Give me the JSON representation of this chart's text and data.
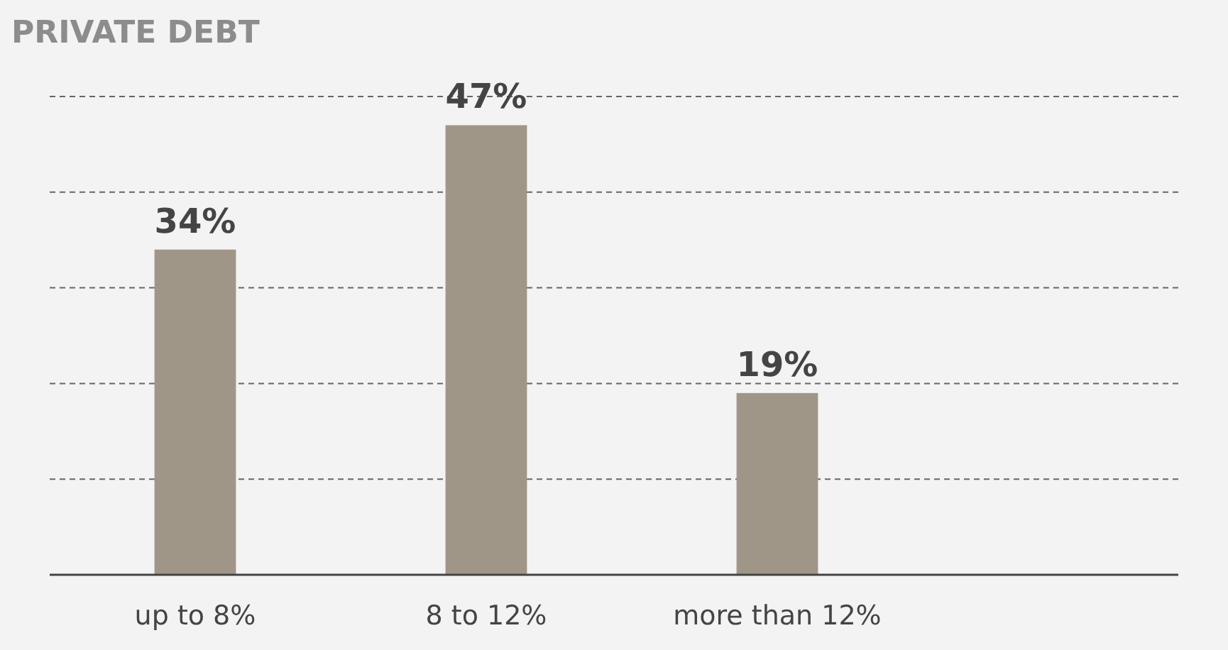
{
  "chart_data": {
    "type": "bar",
    "title": "PRIVATE DEBT",
    "categories": [
      "up to 8%",
      "8 to 12%",
      "more than 12%"
    ],
    "values": [
      34,
      47,
      19
    ],
    "color": "#a09688",
    "value_labels": [
      "34%",
      "47%",
      "19%"
    ],
    "ylim": [
      0,
      50
    ],
    "yticks": [
      {
        "value": 0,
        "label": null
      },
      {
        "value": 10,
        "label": null
      },
      {
        "value": 20,
        "label": null
      },
      {
        "value": 30,
        "label": null
      },
      {
        "value": 40,
        "label": null
      },
      {
        "value": 50,
        "label": null
      }
    ],
    "grid": "y",
    "tick_labels": "x"
  }
}
